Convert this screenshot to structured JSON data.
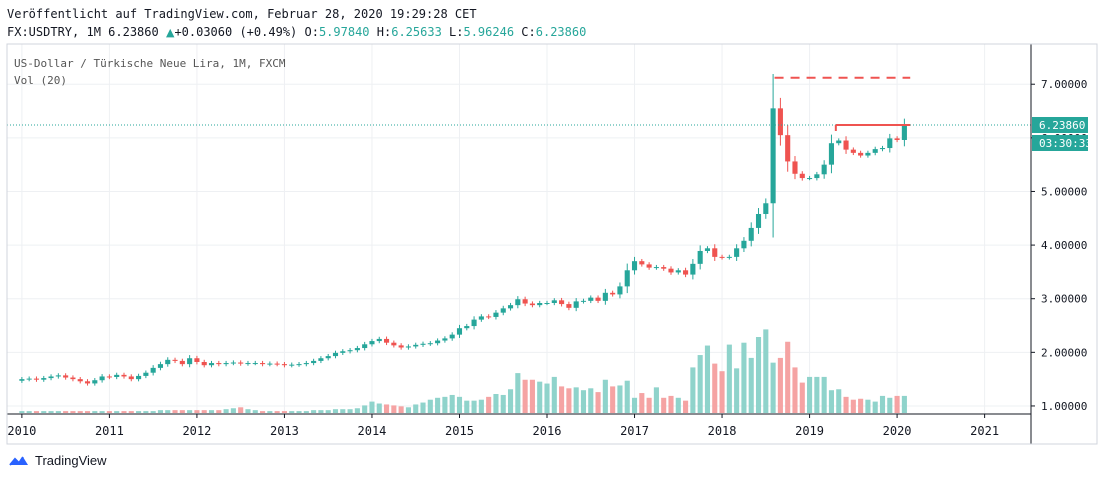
{
  "header": {
    "published": "Veröffentlicht auf TradingView.com, Februar 28, 2020 19:29:28 CET",
    "symbol": "FX:USDTRY, 1M",
    "last": "6.23860",
    "change_arrow": "▲",
    "change": "+0.03060 (+0.49%)",
    "o_label": "O:",
    "o": "5.97840",
    "h_label": "H:",
    "h": "6.25633",
    "l_label": "L:",
    "l": "5.96246",
    "c_label": "C:",
    "c": "6.23860"
  },
  "legend": {
    "series_title": "US-Dollar / Türkische Neue Lira, 1M, FXCM",
    "volume_title": "Vol (20)"
  },
  "price_badge": {
    "value": "6.23860",
    "countdown": "03:30:33"
  },
  "footer": {
    "brand": "TradingView"
  },
  "colors": {
    "up": "#26a69a",
    "down": "#ef5350",
    "vol_up": "#8fd3cb",
    "vol_down": "#f5a3a3",
    "grid": "#eef0f3"
  },
  "chart_data": {
    "type": "candlestick",
    "title": "US-Dollar / Türkische Neue Lira, 1M, FXCM",
    "interval": "1M",
    "y_ticks": [
      "1.00000",
      "2.00000",
      "3.00000",
      "4.00000",
      "5.00000",
      "6.00000",
      "7.00000"
    ],
    "x_ticks": [
      "2010",
      "2011",
      "2012",
      "2013",
      "2014",
      "2015",
      "2016",
      "2017",
      "2018",
      "2019",
      "2020",
      "2021"
    ],
    "ylim": [
      0.85,
      7.75
    ],
    "xlim": [
      2009.83,
      2021.53
    ],
    "last_price": 6.2386,
    "resistance_dashed": 7.12,
    "resistance_solid": 6.24,
    "closes_2010_2020": [
      1.5,
      1.51,
      1.49,
      1.52,
      1.55,
      1.57,
      1.53,
      1.5,
      1.46,
      1.42,
      1.48,
      1.55,
      1.54,
      1.58,
      1.55,
      1.5,
      1.56,
      1.62,
      1.71,
      1.78,
      1.86,
      1.84,
      1.78,
      1.89,
      1.82,
      1.76,
      1.8,
      1.78,
      1.8,
      1.81,
      1.79,
      1.8,
      1.8,
      1.78,
      1.79,
      1.78,
      1.76,
      1.77,
      1.78,
      1.8,
      1.84,
      1.89,
      1.93,
      1.99,
      2.02,
      2.04,
      2.08,
      2.15,
      2.21,
      2.25,
      2.18,
      2.13,
      2.09,
      2.11,
      2.14,
      2.16,
      2.17,
      2.22,
      2.26,
      2.33,
      2.45,
      2.49,
      2.61,
      2.67,
      2.66,
      2.74,
      2.82,
      2.88,
      2.99,
      2.91,
      2.88,
      2.92,
      2.92,
      2.97,
      2.9,
      2.83,
      2.95,
      2.96,
      3.02,
      2.96,
      3.11,
      3.08,
      3.23,
      3.53,
      3.7,
      3.64,
      3.58,
      3.59,
      3.56,
      3.49,
      3.53,
      3.45,
      3.65,
      3.89,
      3.94,
      3.78,
      3.77,
      3.78,
      3.94,
      4.08,
      4.32,
      4.58,
      4.78,
      6.55,
      6.05,
      5.56,
      5.33,
      5.25,
      5.25,
      5.32,
      5.5,
      5.9,
      5.95,
      5.78,
      5.72,
      5.67,
      5.72,
      5.79,
      5.81,
      5.99,
      5.96,
      6.24
    ],
    "volume_series": [
      {
        "name": "Vol (20)",
        "note": "monthly volume bars, relative (0-1); colour follows candle direction"
      }
    ],
    "volume_2010_2020": [
      0.02,
      0.02,
      0.02,
      0.02,
      0.02,
      0.02,
      0.02,
      0.02,
      0.02,
      0.02,
      0.02,
      0.02,
      0.02,
      0.02,
      0.02,
      0.02,
      0.02,
      0.02,
      0.02,
      0.03,
      0.03,
      0.03,
      0.03,
      0.03,
      0.03,
      0.03,
      0.03,
      0.03,
      0.04,
      0.05,
      0.06,
      0.04,
      0.03,
      0.02,
      0.02,
      0.02,
      0.02,
      0.02,
      0.02,
      0.02,
      0.03,
      0.03,
      0.03,
      0.04,
      0.04,
      0.04,
      0.05,
      0.08,
      0.12,
      0.1,
      0.09,
      0.08,
      0.07,
      0.06,
      0.09,
      0.11,
      0.14,
      0.16,
      0.17,
      0.19,
      0.17,
      0.13,
      0.13,
      0.14,
      0.17,
      0.2,
      0.19,
      0.25,
      0.42,
      0.35,
      0.35,
      0.33,
      0.31,
      0.38,
      0.28,
      0.26,
      0.27,
      0.24,
      0.26,
      0.22,
      0.35,
      0.28,
      0.29,
      0.34,
      0.16,
      0.21,
      0.16,
      0.27,
      0.16,
      0.18,
      0.16,
      0.13,
      0.48,
      0.61,
      0.71,
      0.52,
      0.44,
      0.72,
      0.47,
      0.74,
      0.58,
      0.8,
      0.88,
      0.53,
      0.58,
      0.75,
      0.48,
      0.32,
      0.38,
      0.38,
      0.38,
      0.24,
      0.25,
      0.17,
      0.14,
      0.15,
      0.14,
      0.12,
      0.18,
      0.16,
      0.18,
      0.18
    ]
  }
}
